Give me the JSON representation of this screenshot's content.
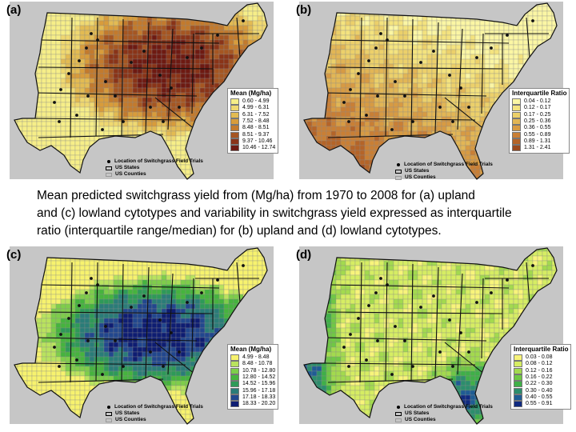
{
  "caption": {
    "lines": [
      "Mean predicted switchgrass yield from (Mg/ha) from 1970 to 2008 for (a) upland",
      "and (c) lowland cytotypes and variability in switchgrass yield expressed as interquartile",
      "ratio (interquartile range/median) for (b) upland and (d) lowland cytotypes."
    ]
  },
  "map_key": {
    "field_trials": "Location of Switchgrass Field Trials",
    "states": "US States",
    "counties": "US Counties"
  },
  "colors": {
    "no_data": "#c6c6c6",
    "upland_mean": [
      "#f6ee88",
      "#efd870",
      "#e3bb52",
      "#d89c3b",
      "#c37a2d",
      "#a65622",
      "#8a3418",
      "#6e1a12"
    ],
    "upland_iqr": [
      "#fbf6a4",
      "#f4e37e",
      "#ecd06a",
      "#e2b655",
      "#d79b43",
      "#c97f35",
      "#b56428",
      "#9b4a1e"
    ],
    "lowland_mean": [
      "#f7f26e",
      "#b9e35e",
      "#7ece4a",
      "#46b43e",
      "#2e9a58",
      "#2a7c78",
      "#22478e",
      "#0e1d72"
    ],
    "lowland_iqr": [
      "#f8f47a",
      "#d6ed63",
      "#a3da4e",
      "#6fc845",
      "#3fb048",
      "#2c8e6c",
      "#1f5c94",
      "#102a80"
    ]
  },
  "panels": [
    {
      "letter": "(a)",
      "legend": {
        "title": "Mean (Mg/ha)",
        "items": [
          "0.60 - 4.99",
          "4.99 - 6.31",
          "6.31 - 7.52",
          "7.52 - 8.48",
          "8.48 - 8.51",
          "8.51 - 9.37",
          "9.37 - 10.46",
          "10.46 - 12.74"
        ]
      }
    },
    {
      "letter": "(b)",
      "legend": {
        "title": "Interquartile Ratio",
        "items": [
          "0.04 - 0.12",
          "0.12 - 0.17",
          "0.17 - 0.25",
          "0.25 - 0.36",
          "0.36 - 0.55",
          "0.55 - 0.89",
          "0.89 - 1.31",
          "1.31 - 2.41"
        ]
      }
    },
    {
      "letter": "(c)",
      "legend": {
        "title": "Mean (Mg/ha)",
        "items": [
          "4.99 - 8.48",
          "8.48 - 10.78",
          "10.78 - 12.80",
          "12.80 - 14.52",
          "14.52 - 15.96",
          "15.96 - 17.18",
          "17.18 - 18.33",
          "18.33 - 20.20"
        ]
      }
    },
    {
      "letter": "(d)",
      "legend": {
        "title": "Interquartile Ratio",
        "items": [
          "0.03 - 0.08",
          "0.08 - 0.12",
          "0.12 - 0.16",
          "0.16 - 0.22",
          "0.22 - 0.30",
          "0.30 - 0.40",
          "0.40 - 0.55",
          "0.55 - 0.91"
        ]
      }
    }
  ]
}
